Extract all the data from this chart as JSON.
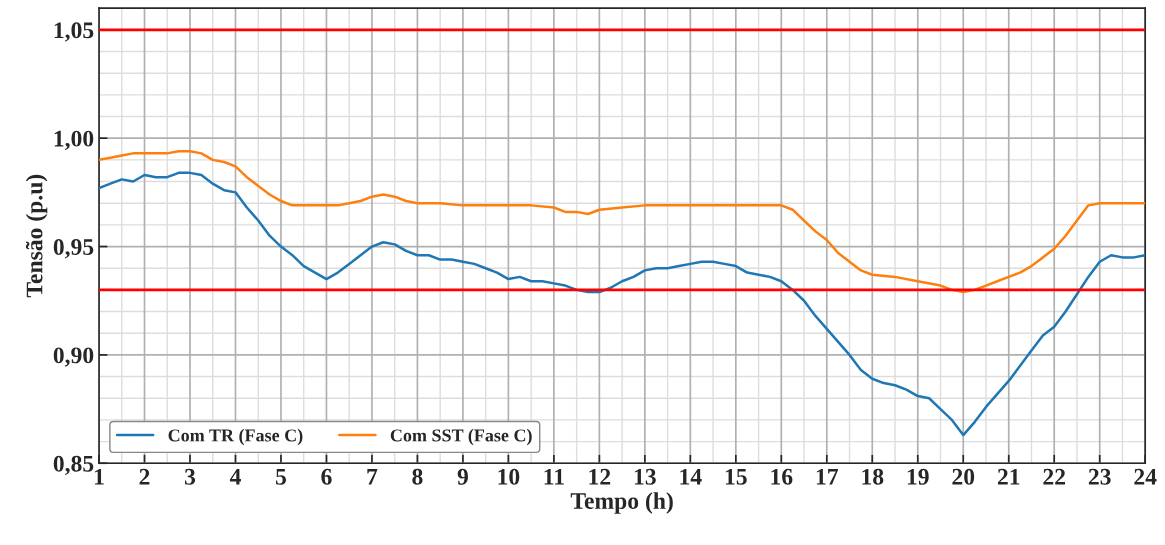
{
  "chart_data": {
    "type": "line",
    "xlabel": "Tempo (h)",
    "ylabel": "Tensão (p.u)",
    "xlim": [
      1,
      24
    ],
    "xticks": [
      1,
      2,
      3,
      4,
      5,
      6,
      7,
      8,
      9,
      10,
      11,
      12,
      13,
      14,
      15,
      16,
      17,
      18,
      19,
      20,
      21,
      22,
      23,
      24
    ],
    "ylim": [
      0.85,
      1.06
    ],
    "yticks": [
      {
        "value": 0.85,
        "label": "0,85"
      },
      {
        "value": 0.9,
        "label": "0,90"
      },
      {
        "value": 0.95,
        "label": "0,95"
      },
      {
        "value": 1.0,
        "label": "1,00"
      },
      {
        "value": 1.05,
        "label": "1,05"
      }
    ],
    "grid": true,
    "legend": "bottom left",
    "marker": "none",
    "line_style": "solid",
    "ref_lines": [
      {
        "axis": "y",
        "value": 1.05,
        "color": "#ff0000"
      },
      {
        "axis": "y",
        "value": 0.93,
        "color": "#ff0000"
      }
    ],
    "series": [
      {
        "name": "Com TR (Fase C)",
        "color": "#1f77b4",
        "x": [
          1,
          1.25,
          1.5,
          1.75,
          2,
          2.25,
          2.5,
          2.75,
          3,
          3.25,
          3.5,
          3.75,
          4,
          4.25,
          4.5,
          4.75,
          5,
          5.25,
          5.5,
          5.75,
          6,
          6.25,
          6.5,
          6.75,
          7,
          7.25,
          7.5,
          7.75,
          8,
          8.25,
          8.5,
          8.75,
          9,
          9.25,
          9.5,
          9.75,
          10,
          10.25,
          10.5,
          10.75,
          11,
          11.25,
          11.5,
          11.75,
          12,
          12.25,
          12.5,
          12.75,
          13,
          13.25,
          13.5,
          13.75,
          14,
          14.25,
          14.5,
          14.75,
          15,
          15.25,
          15.5,
          15.75,
          16,
          16.25,
          16.5,
          16.75,
          17,
          17.25,
          17.5,
          17.75,
          18,
          18.25,
          18.5,
          18.75,
          19,
          19.25,
          19.5,
          19.75,
          20,
          20.25,
          20.5,
          20.75,
          21,
          21.25,
          21.5,
          21.75,
          22,
          22.25,
          22.5,
          22.75,
          23,
          23.25,
          23.5,
          23.75,
          24
        ],
        "values": [
          0.977,
          0.979,
          0.981,
          0.98,
          0.983,
          0.982,
          0.982,
          0.984,
          0.984,
          0.983,
          0.979,
          0.976,
          0.975,
          0.968,
          0.962,
          0.955,
          0.95,
          0.946,
          0.941,
          0.938,
          0.935,
          0.938,
          0.942,
          0.946,
          0.95,
          0.952,
          0.951,
          0.948,
          0.946,
          0.946,
          0.944,
          0.944,
          0.943,
          0.942,
          0.94,
          0.938,
          0.935,
          0.936,
          0.934,
          0.934,
          0.933,
          0.932,
          0.93,
          0.929,
          0.929,
          0.931,
          0.934,
          0.936,
          0.939,
          0.94,
          0.94,
          0.941,
          0.942,
          0.943,
          0.943,
          0.942,
          0.941,
          0.938,
          0.937,
          0.936,
          0.934,
          0.93,
          0.925,
          0.918,
          0.912,
          0.906,
          0.9,
          0.893,
          0.889,
          0.887,
          0.886,
          0.884,
          0.881,
          0.88,
          0.875,
          0.87,
          0.863,
          0.869,
          0.876,
          0.882,
          0.888,
          0.895,
          0.902,
          0.909,
          0.913,
          0.92,
          0.928,
          0.936,
          0.943,
          0.946,
          0.945,
          0.945,
          0.946
        ]
      },
      {
        "name": "Com SST (Fase C)",
        "color": "#ff7f0e",
        "x": [
          1,
          1.25,
          1.5,
          1.75,
          2,
          2.25,
          2.5,
          2.75,
          3,
          3.25,
          3.5,
          3.75,
          4,
          4.25,
          4.5,
          4.75,
          5,
          5.25,
          5.5,
          5.75,
          6,
          6.25,
          6.5,
          6.75,
          7,
          7.25,
          7.5,
          7.75,
          8,
          8.5,
          9,
          9.5,
          10,
          10.5,
          11,
          11.25,
          11.5,
          11.75,
          12,
          12.5,
          13,
          13.5,
          14,
          14.5,
          15,
          15.5,
          16,
          16.25,
          16.5,
          16.75,
          17,
          17.25,
          17.5,
          17.75,
          18,
          18.5,
          19,
          19.5,
          19.75,
          20,
          20.25,
          20.5,
          20.75,
          21,
          21.25,
          21.5,
          21.75,
          22,
          22.25,
          22.5,
          22.75,
          23,
          23.5,
          24
        ],
        "values": [
          0.99,
          0.991,
          0.992,
          0.993,
          0.993,
          0.993,
          0.993,
          0.994,
          0.994,
          0.993,
          0.99,
          0.989,
          0.987,
          0.982,
          0.978,
          0.974,
          0.971,
          0.969,
          0.969,
          0.969,
          0.969,
          0.969,
          0.97,
          0.971,
          0.973,
          0.974,
          0.973,
          0.971,
          0.97,
          0.97,
          0.969,
          0.969,
          0.969,
          0.969,
          0.968,
          0.966,
          0.966,
          0.965,
          0.967,
          0.968,
          0.969,
          0.969,
          0.969,
          0.969,
          0.969,
          0.969,
          0.969,
          0.967,
          0.962,
          0.957,
          0.953,
          0.947,
          0.943,
          0.939,
          0.937,
          0.936,
          0.934,
          0.932,
          0.93,
          0.929,
          0.93,
          0.932,
          0.934,
          0.936,
          0.938,
          0.941,
          0.945,
          0.949,
          0.955,
          0.962,
          0.969,
          0.97,
          0.97,
          0.97
        ]
      }
    ]
  }
}
